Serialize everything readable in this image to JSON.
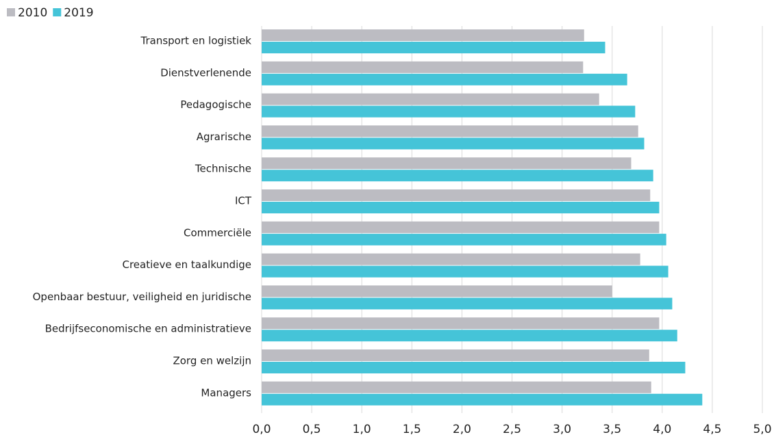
{
  "chart_data": {
    "type": "bar",
    "orientation": "horizontal",
    "categories": [
      "Transport en logistiek",
      "Dienstverlenende",
      "Pedagogische",
      "Agrarische",
      "Technische",
      "ICT",
      "Commerciële",
      "Creatieve en taalkundige",
      "Openbaar bestuur, veiligheid en juridische",
      "Bedrijfseconomische en administratieve",
      "Zorg en welzijn",
      "Managers"
    ],
    "series": [
      {
        "name": "2010",
        "color": "#bcbcc2",
        "values": [
          3.22,
          3.21,
          3.37,
          3.76,
          3.69,
          3.88,
          3.97,
          3.78,
          3.5,
          3.97,
          3.87,
          3.89
        ]
      },
      {
        "name": "2019",
        "color": "#45c4d8",
        "values": [
          3.43,
          3.65,
          3.73,
          3.82,
          3.91,
          3.97,
          4.04,
          4.06,
          4.1,
          4.15,
          4.23,
          4.4
        ]
      }
    ],
    "xlim": [
      0,
      5
    ],
    "xticks": [
      {
        "value": 0,
        "label": "0,0"
      },
      {
        "value": 0.5,
        "label": "0,5"
      },
      {
        "value": 1,
        "label": "1,0"
      },
      {
        "value": 1.5,
        "label": "1,5"
      },
      {
        "value": 2,
        "label": "2,0"
      },
      {
        "value": 2.5,
        "label": "2,5"
      },
      {
        "value": 3,
        "label": "3,0"
      },
      {
        "value": 3.5,
        "label": "3,5"
      },
      {
        "value": 4,
        "label": "4,0"
      },
      {
        "value": 4.5,
        "label": "4,5"
      },
      {
        "value": 5,
        "label": "5,0"
      }
    ],
    "grid": true,
    "legend": "top-left"
  }
}
